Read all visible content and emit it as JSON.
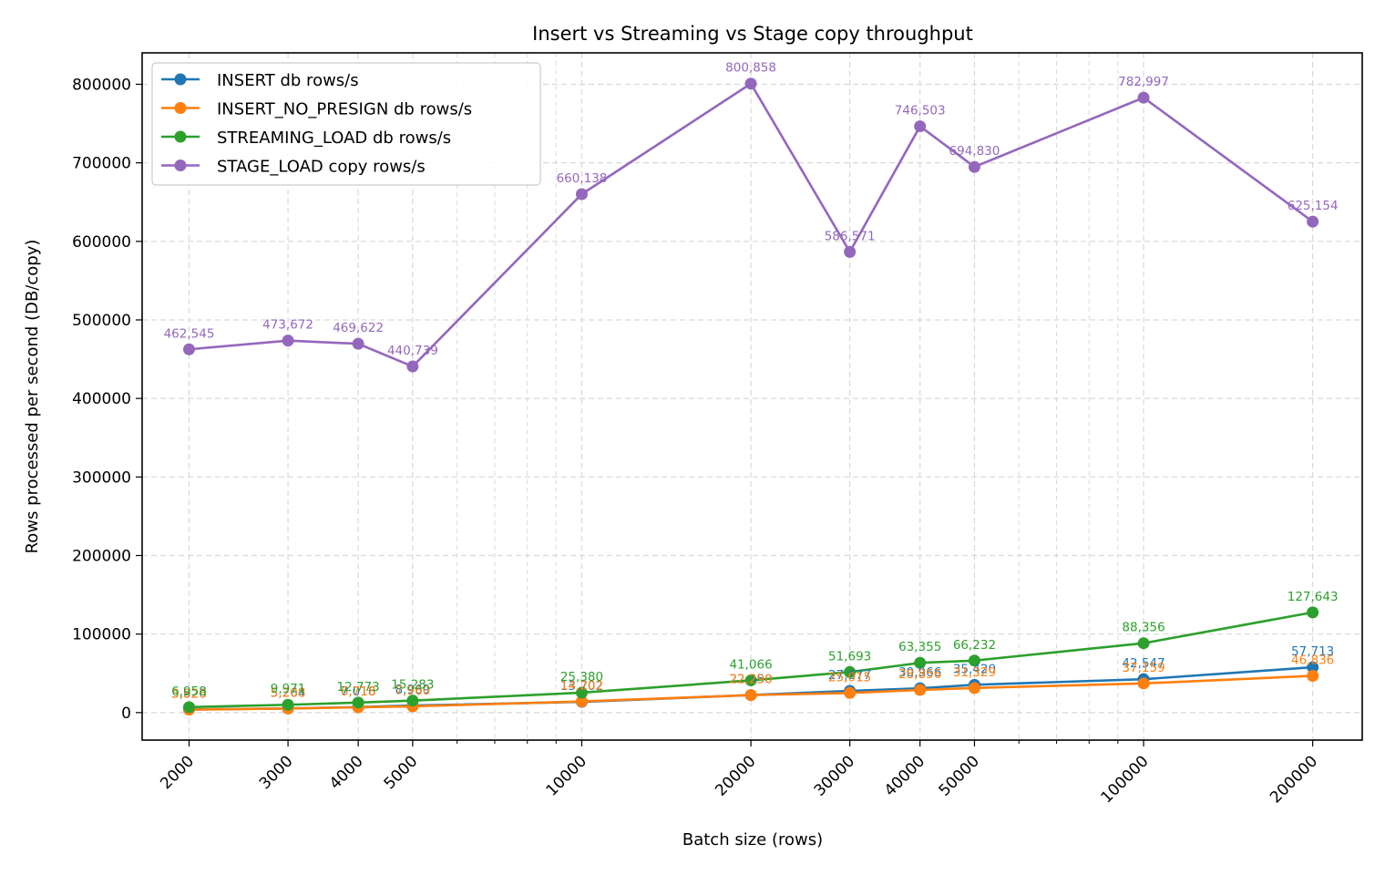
{
  "chart_data": {
    "type": "line",
    "title": "Insert vs Streaming vs Stage copy throughput",
    "xlabel": "Batch size (rows)",
    "ylabel": "Rows processed per second (DB/copy)",
    "xscale": "log",
    "x": [
      2000,
      3000,
      4000,
      5000,
      10000,
      20000,
      30000,
      40000,
      50000,
      100000,
      200000
    ],
    "x_tick_labels": [
      "2000",
      "3000",
      "4000",
      "5000",
      "10000",
      "20000",
      "30000",
      "40000",
      "50000",
      "100000",
      "200000"
    ],
    "y_ticks": [
      0,
      100000,
      200000,
      300000,
      400000,
      500000,
      600000,
      700000,
      800000
    ],
    "y_tick_labels": [
      "0",
      "100000",
      "200000",
      "300000",
      "400000",
      "500000",
      "600000",
      "700000",
      "800000"
    ],
    "ylim": [
      -35000,
      840000
    ],
    "xlim": [
      1650,
      245000
    ],
    "grid": true,
    "legend_position": "top-left",
    "series": [
      {
        "name": "INSERT db rows/s",
        "color": "#1f77b4",
        "values": [
          3920,
          5264,
          7016,
          8969,
          13702,
          22350,
          27677,
          30966,
          35420,
          42547,
          57713
        ],
        "labels": [
          "3,920",
          "5,264",
          "7,016",
          "8,969",
          "13,702",
          "22,350",
          "27,677",
          "30,966",
          "35,420",
          "42,547",
          "57,713"
        ]
      },
      {
        "name": "INSERT_NO_PRESIGN db rows/s",
        "color": "#ff7f0e",
        "values": [
          3826,
          5208,
          6718,
          7960,
          14202,
          22290,
          25015,
          28856,
          31329,
          37159,
          46836
        ],
        "labels": [
          "3,826",
          "5,208",
          "6,718",
          "7,960",
          "14,202",
          "22,290",
          "25,015",
          "28,856",
          "31,329",
          "37,159",
          "46,836"
        ]
      },
      {
        "name": "STREAMING_LOAD db rows/s",
        "color": "#2ca02c",
        "values": [
          6958,
          9971,
          12773,
          15283,
          25380,
          41066,
          51693,
          63355,
          66232,
          88356,
          127643
        ],
        "labels": [
          "6,958",
          "9,971",
          "12,773",
          "15,283",
          "25,380",
          "41,066",
          "51,693",
          "63,355",
          "66,232",
          "88,356",
          "127,643"
        ]
      },
      {
        "name": "STAGE_LOAD copy rows/s",
        "color": "#9467bd",
        "values": [
          462545,
          473672,
          469622,
          440739,
          660138,
          800858,
          586571,
          746503,
          694830,
          782997,
          625154
        ],
        "labels": [
          "462,545",
          "473,672",
          "469,622",
          "440,739",
          "660,138",
          "800,858",
          "586,571",
          "746,503",
          "694,830",
          "782,997",
          "625,154"
        ]
      }
    ]
  }
}
